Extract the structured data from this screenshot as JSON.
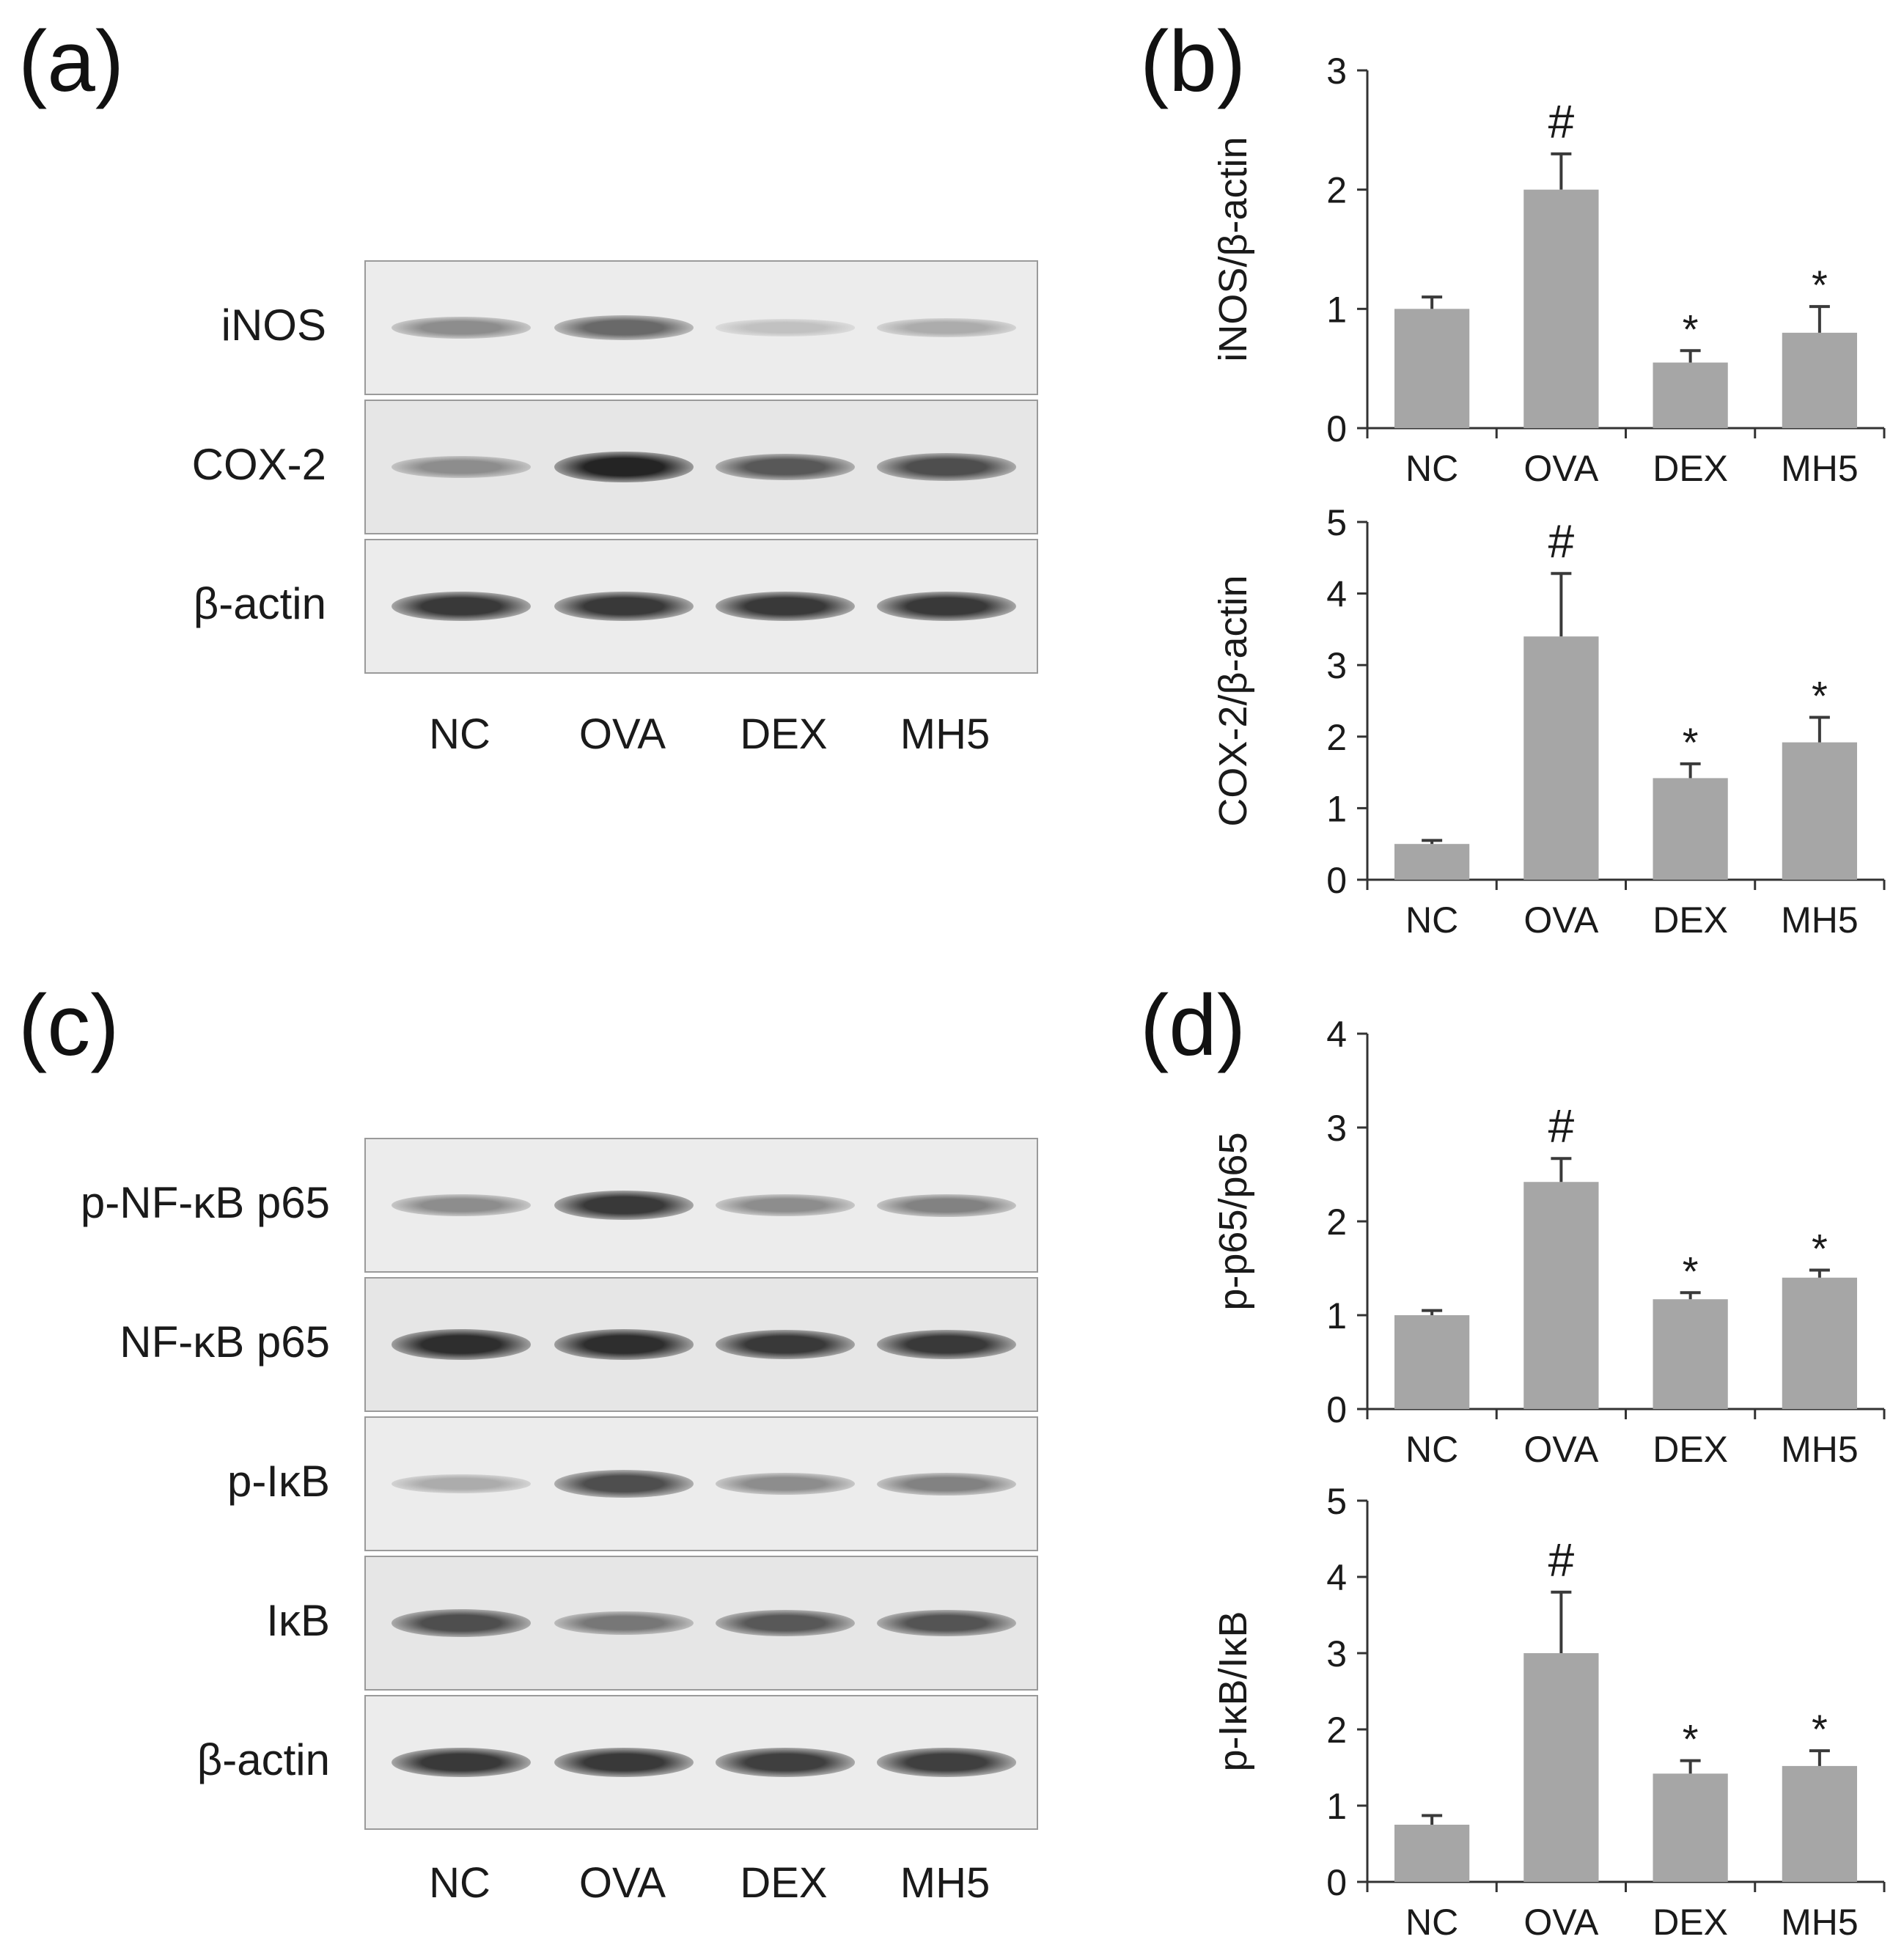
{
  "panels": {
    "a": {
      "label": "(a)"
    },
    "b": {
      "label": "(b)"
    },
    "c": {
      "label": "(c)"
    },
    "d": {
      "label": "(d)"
    }
  },
  "blot_a": {
    "rows": [
      {
        "label": "iNOS",
        "intensity": [
          0.45,
          0.62,
          0.2,
          0.3
        ]
      },
      {
        "label": "COX-2",
        "intensity": [
          0.45,
          0.95,
          0.7,
          0.75
        ]
      },
      {
        "label": "β-actin",
        "intensity": [
          0.85,
          0.85,
          0.85,
          0.85
        ]
      }
    ],
    "lanes": [
      "NC",
      "OVA",
      "DEX",
      "MH5"
    ]
  },
  "blot_c": {
    "rows": [
      {
        "label": "p-NF-κB p65",
        "intensity": [
          0.45,
          0.85,
          0.45,
          0.5
        ]
      },
      {
        "label": "NF-κB p65",
        "intensity": [
          0.9,
          0.9,
          0.85,
          0.85
        ]
      },
      {
        "label": "p-IκB",
        "intensity": [
          0.3,
          0.75,
          0.45,
          0.5
        ]
      },
      {
        "label": "IκB",
        "intensity": [
          0.75,
          0.55,
          0.7,
          0.72
        ]
      },
      {
        "label": "β-actin",
        "intensity": [
          0.85,
          0.85,
          0.82,
          0.82
        ]
      }
    ],
    "lanes": [
      "NC",
      "OVA",
      "DEX",
      "MH5"
    ]
  },
  "chart_data": [
    {
      "type": "bar",
      "panel": "b",
      "categories": [
        "NC",
        "OVA",
        "DEX",
        "MH5"
      ],
      "values": [
        1.0,
        2.0,
        0.55,
        0.8
      ],
      "errors": [
        0.1,
        0.3,
        0.1,
        0.22
      ],
      "annotations": [
        "",
        "#",
        "*",
        "*"
      ],
      "title": "",
      "xlabel": "",
      "ylabel": "iNOS/β-actin",
      "ylim": [
        0,
        3
      ],
      "yticks": [
        0,
        1,
        2,
        3
      ],
      "bar_color": "#a6a6a6"
    },
    {
      "type": "bar",
      "panel": "b",
      "categories": [
        "NC",
        "OVA",
        "DEX",
        "MH5"
      ],
      "values": [
        0.5,
        3.4,
        1.42,
        1.92
      ],
      "errors": [
        0.05,
        0.88,
        0.2,
        0.35
      ],
      "annotations": [
        "",
        "#",
        "*",
        "*"
      ],
      "title": "",
      "xlabel": "",
      "ylabel": "COX-2/β-actin",
      "ylim": [
        0,
        5
      ],
      "yticks": [
        0,
        1,
        2,
        3,
        4,
        5
      ],
      "bar_color": "#a6a6a6"
    },
    {
      "type": "bar",
      "panel": "d",
      "categories": [
        "NC",
        "OVA",
        "DEX",
        "MH5"
      ],
      "values": [
        1.0,
        2.42,
        1.17,
        1.4
      ],
      "errors": [
        0.05,
        0.25,
        0.07,
        0.08
      ],
      "annotations": [
        "",
        "#",
        "*",
        "*"
      ],
      "title": "",
      "xlabel": "",
      "ylabel": "p-p65/p65",
      "ylim": [
        0,
        4
      ],
      "yticks": [
        0,
        1,
        2,
        3,
        4
      ],
      "bar_color": "#a6a6a6"
    },
    {
      "type": "bar",
      "panel": "d",
      "categories": [
        "NC",
        "OVA",
        "DEX",
        "MH5"
      ],
      "values": [
        0.75,
        3.0,
        1.42,
        1.52
      ],
      "errors": [
        0.12,
        0.8,
        0.17,
        0.2
      ],
      "annotations": [
        "",
        "#",
        "*",
        "*"
      ],
      "title": "",
      "xlabel": "",
      "ylabel": "p-IκB/IκB",
      "ylim": [
        0,
        5
      ],
      "yticks": [
        0,
        1,
        2,
        3,
        4,
        5
      ],
      "bar_color": "#a6a6a6"
    }
  ]
}
